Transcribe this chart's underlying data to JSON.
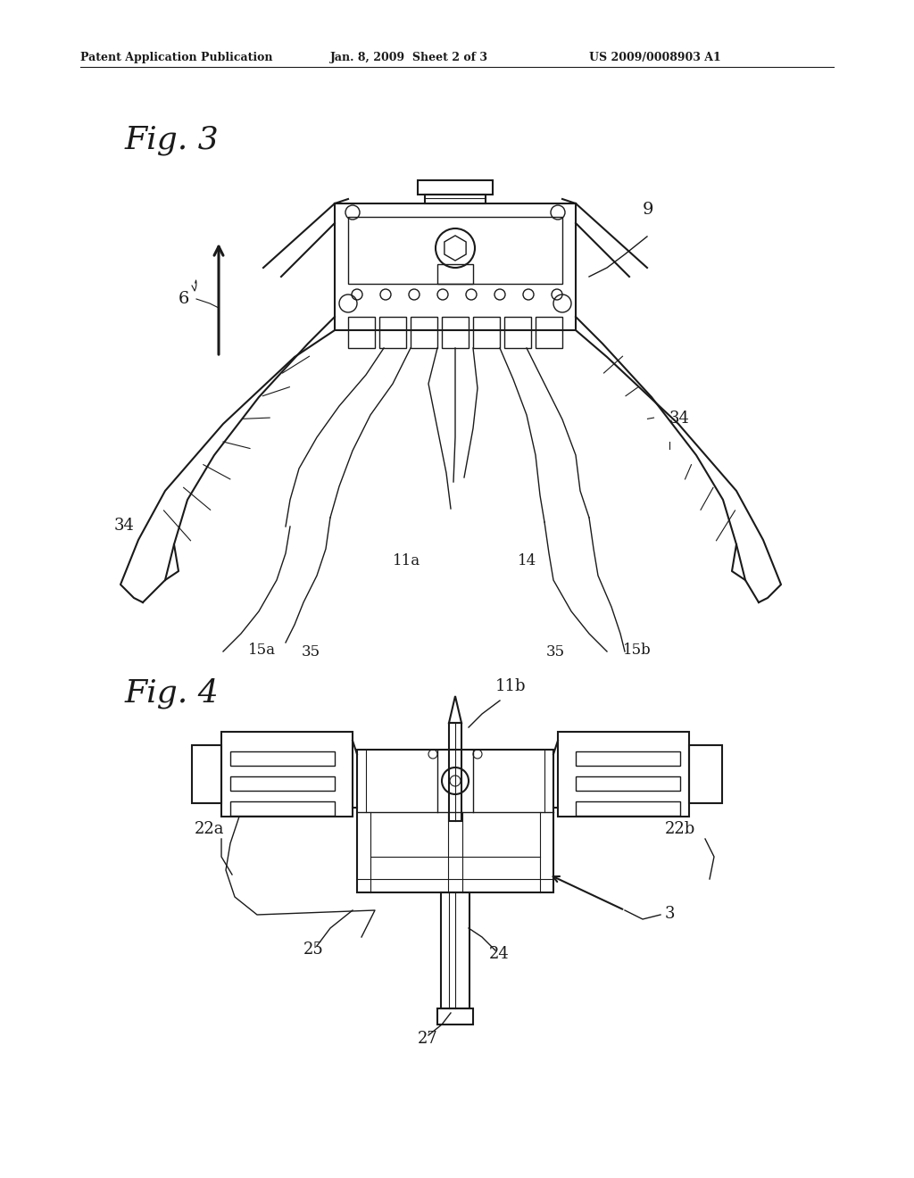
{
  "bg_color": "#ffffff",
  "line_color": "#1a1a1a",
  "header_text": "Patent Application Publication",
  "header_date": "Jan. 8, 2009  Sheet 2 of 3",
  "header_patent": "US 2009/0008903 A1",
  "fig3_label": "Fig. 3",
  "fig4_label": "Fig. 4"
}
